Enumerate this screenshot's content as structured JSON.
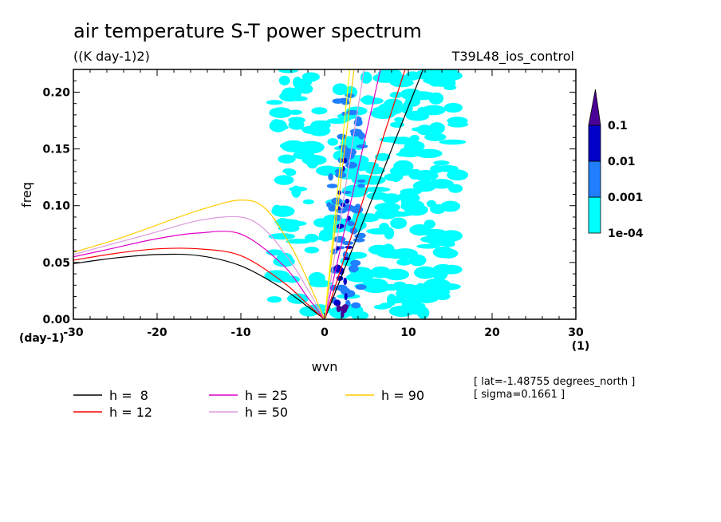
{
  "chart_data": {
    "type": "heatmap",
    "title": "air temperature S-T power spectrum",
    "subtitle": "((K day-1)2)",
    "experiment": "T39L48_ios_control",
    "xlabel": "wvn",
    "ylabel": "freq",
    "x_unit": "(1)",
    "y_unit": "(day-1)",
    "xlim": [
      -30,
      30
    ],
    "ylim": [
      0,
      0.22
    ],
    "xticks": [
      -30,
      -20,
      -10,
      0,
      10,
      20,
      30
    ],
    "xtick_labels": [
      "-30",
      "-20",
      "-10",
      "0",
      "10",
      "20",
      "30"
    ],
    "yticks": [
      0,
      0.05,
      0.1,
      0.15,
      0.2
    ],
    "ytick_labels": [
      "0.00",
      "0.05",
      "0.10",
      "0.15",
      "0.20"
    ],
    "colorbar": {
      "levels": [
        "1e-04",
        "0.001",
        "0.01",
        "0.1"
      ],
      "colors": [
        "#00ffff",
        "#1f7fff",
        "#0000c8",
        "#4b0096"
      ]
    },
    "contour_regions": [
      {
        "level": "1e-04",
        "x0": -6,
        "x1": 16,
        "y0": 0.0,
        "y1": 0.22
      },
      {
        "level": "0.001",
        "x0": 0.5,
        "x1": 4.5,
        "y0": 0.01,
        "y1": 0.2
      },
      {
        "level": "0.01",
        "x0": 1.5,
        "x1": 3.0,
        "y0": 0.01,
        "y1": 0.14
      },
      {
        "level": "0.1",
        "x0": 1.5,
        "x1": 2.5,
        "y0": 0.0,
        "y1": 0.012
      }
    ],
    "dispersion_curves": [
      {
        "name": "h =  8",
        "label": "h =  8",
        "color": "#000000",
        "kelvin_slope": 0.0187,
        "x": [
          -30,
          -25,
          -20,
          -15,
          -10,
          -5,
          -2,
          0
        ],
        "y": [
          0.049,
          0.054,
          0.057,
          0.056,
          0.047,
          0.027,
          0.011,
          0.0
        ]
      },
      {
        "name": "h = 12",
        "label": "h = 12",
        "color": "#ff0000",
        "kelvin_slope": 0.0229,
        "x": [
          -30,
          -25,
          -20,
          -15,
          -10,
          -5,
          -2,
          0
        ],
        "y": [
          0.052,
          0.058,
          0.062,
          0.062,
          0.056,
          0.033,
          0.013,
          0.0
        ]
      },
      {
        "name": "h = 25",
        "label": "h = 25",
        "color": "#e000c8",
        "kelvin_slope": 0.033,
        "x": [
          -30,
          -25,
          -20,
          -15,
          -10,
          -5,
          -2,
          0
        ],
        "y": [
          0.055,
          0.063,
          0.071,
          0.076,
          0.075,
          0.048,
          0.019,
          0.0
        ]
      },
      {
        "name": "h = 50",
        "label": "h = 50",
        "color": "#dd99dd",
        "kelvin_slope": 0.0467,
        "x": [
          -30,
          -25,
          -20,
          -15,
          -10,
          -7,
          -4,
          -2,
          0
        ],
        "y": [
          0.057,
          0.067,
          0.077,
          0.087,
          0.09,
          0.078,
          0.05,
          0.026,
          0.0
        ]
      },
      {
        "name": "h = 90",
        "label": "h = 90",
        "color": "#ffcc00",
        "kelvin_slope": 0.0627,
        "x": [
          -30,
          -25,
          -20,
          -15,
          -10,
          -7,
          -4,
          -2,
          0
        ],
        "y": [
          0.059,
          0.07,
          0.083,
          0.096,
          0.105,
          0.097,
          0.064,
          0.034,
          0.0
        ]
      }
    ],
    "equator_line": {
      "color": "#ffff00",
      "slope": 0.0733
    }
  },
  "annotation": {
    "lat": "[ lat=-1.48755 degrees_north ]",
    "sigma": "[ sigma=0.1661 ]"
  }
}
